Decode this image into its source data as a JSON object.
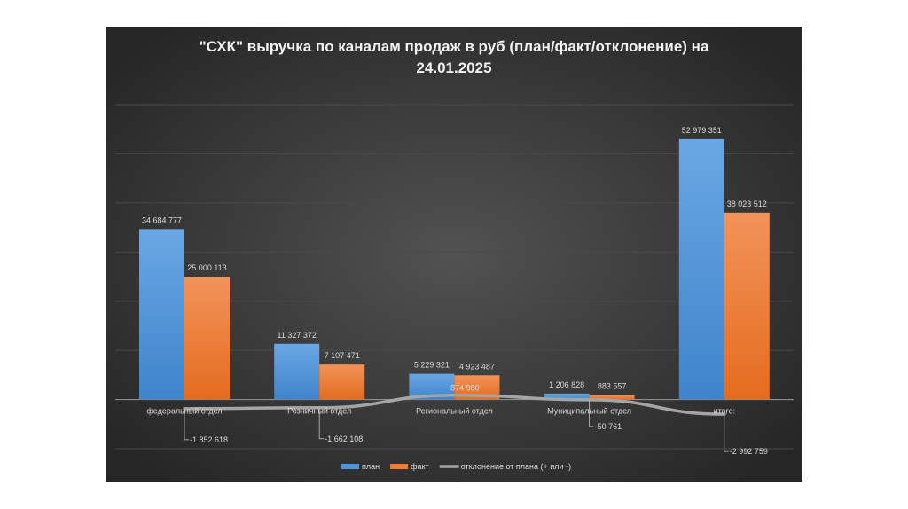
{
  "chart_data": {
    "type": "bar",
    "title_line1": "\"СХК\" выручка по каналам продаж  в руб (план/факт/отклонение) на",
    "title_line2": "24.01.2025",
    "categories": [
      "федеральный отдел",
      "Розничный отдел",
      "Региональный отдел",
      "Муниципальный отдел",
      "итого:"
    ],
    "series": [
      {
        "name": "план",
        "type": "bar",
        "color": "#4f93d8",
        "values": [
          34684777,
          11327372,
          5229321,
          1206828,
          52979351
        ],
        "labels": [
          "34 684 777",
          "11 327 372",
          "5 229 321",
          "1 206 828",
          "52 979 351"
        ]
      },
      {
        "name": "факт",
        "type": "bar",
        "color": "#ed7d31",
        "values": [
          25000113,
          7107471,
          4923487,
          883557,
          38023512
        ],
        "labels": [
          "25 000 113",
          "7 107 471",
          "4 923 487",
          "883 557",
          "38 023 512"
        ]
      },
      {
        "name": "отклонение от плана (+ или -)",
        "type": "line",
        "color": "#a5a5a5",
        "values": [
          -1852618,
          -1662108,
          874980,
          -50761,
          -2992759
        ],
        "labels": [
          "-1 852 618",
          "-1 662 108",
          "874 980",
          "-50 761",
          "-2 992 759"
        ]
      }
    ],
    "ylim": [
      -10000000,
      60000000
    ],
    "grid": true,
    "legend": "bottom"
  }
}
